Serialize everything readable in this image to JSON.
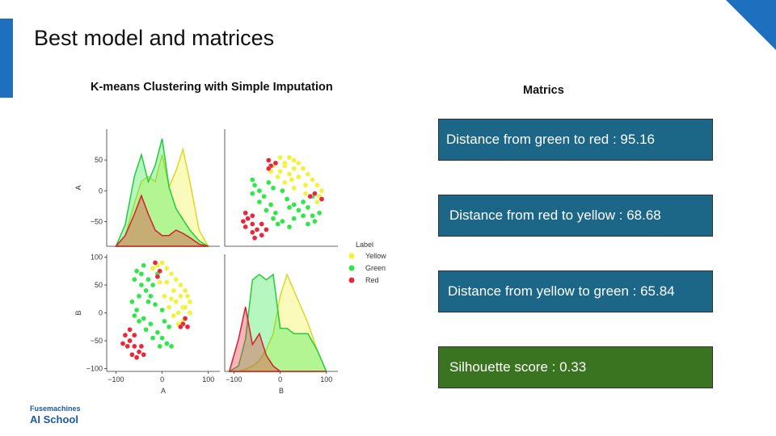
{
  "slide": {
    "title": "Best model and matrices",
    "logo_line1": "Fusemachines",
    "logo_line2": "AI School",
    "accent_color": "#1f6fbf"
  },
  "chart": {
    "title": "K-means Clustering with Simple Imputation"
  },
  "metrics": {
    "title": "Matrics",
    "items": [
      {
        "text": "Distance from green to red : 95.16",
        "color": "#1c6787"
      },
      {
        "text": "Distance from red to yellow : 68.68",
        "color": "#1c6787"
      },
      {
        "text": "Distance from yellow to green : 65.84",
        "color": "#1c6787"
      },
      {
        "text": "Silhouette score : 0.33",
        "color": "#3b7420"
      }
    ]
  },
  "chart_data": {
    "type": "scatter",
    "subtype": "pairplot",
    "variables": [
      "A",
      "B"
    ],
    "xlabel_left": "A",
    "xlabel_right": "B",
    "ylabel_top": "A",
    "ylabel_bottom": "B",
    "A_ticks": [
      -50,
      0,
      50
    ],
    "A_lim": [
      -90,
      100
    ],
    "B_ticks": [
      -100,
      -50,
      0,
      50,
      100
    ],
    "B_lim": [
      -105,
      105
    ],
    "x_ticks_A": [
      -100,
      0,
      100
    ],
    "x_lim_A": [
      -120,
      125
    ],
    "x_ticks_B": [
      -100,
      0,
      100
    ],
    "x_lim_B": [
      -120,
      125
    ],
    "legend": {
      "title": "Label",
      "placement": "right",
      "entries": [
        {
          "name": "Yellow",
          "color": "#f2f23a"
        },
        {
          "name": "Green",
          "color": "#2ee84a"
        },
        {
          "name": "Red",
          "color": "#e8283a"
        }
      ]
    },
    "density_A": {
      "x": [
        -100,
        -80,
        -60,
        -45,
        -30,
        -15,
        0,
        15,
        30,
        45,
        60,
        80,
        100
      ],
      "Yellow": [
        0.0,
        0.1,
        0.4,
        0.6,
        0.65,
        0.6,
        0.85,
        0.55,
        0.7,
        0.9,
        0.6,
        0.15,
        0.0
      ],
      "Green": [
        0.0,
        0.2,
        0.65,
        0.85,
        0.6,
        0.75,
        1.0,
        0.55,
        0.35,
        0.25,
        0.15,
        0.05,
        0.0
      ],
      "Red": [
        0.0,
        0.1,
        0.3,
        0.47,
        0.3,
        0.15,
        0.1,
        0.1,
        0.15,
        0.12,
        0.08,
        0.02,
        0.0
      ]
    },
    "density_B": {
      "x": [
        -110,
        -90,
        -75,
        -60,
        -45,
        -30,
        -15,
        0,
        15,
        30,
        45,
        60,
        80,
        100
      ],
      "Yellow": [
        0.0,
        0.0,
        0.02,
        0.05,
        0.1,
        0.2,
        0.35,
        0.7,
        0.9,
        0.75,
        0.6,
        0.45,
        0.2,
        0.0
      ],
      "Green": [
        0.0,
        0.05,
        0.3,
        0.85,
        0.9,
        0.85,
        0.9,
        0.4,
        0.4,
        0.35,
        0.35,
        0.35,
        0.2,
        0.0
      ],
      "Red": [
        0.0,
        0.3,
        0.6,
        0.25,
        0.35,
        0.15,
        0.05,
        0.0,
        0.0,
        0.0,
        0.0,
        0.0,
        0.0,
        0.0
      ]
    },
    "scatter_clusters": [
      {
        "label": "Yellow",
        "points": [
          [
            -20,
            80
          ],
          [
            -10,
            85
          ],
          [
            0,
            90
          ],
          [
            10,
            80
          ],
          [
            20,
            70
          ],
          [
            30,
            60
          ],
          [
            40,
            50
          ],
          [
            50,
            40
          ],
          [
            55,
            30
          ],
          [
            60,
            20
          ],
          [
            45,
            10
          ],
          [
            35,
            0
          ],
          [
            25,
            -5
          ],
          [
            15,
            10
          ],
          [
            5,
            30
          ],
          [
            -5,
            55
          ],
          [
            10,
            55
          ],
          [
            25,
            40
          ],
          [
            40,
            30
          ],
          [
            50,
            10
          ],
          [
            30,
            20
          ],
          [
            20,
            25
          ],
          [
            60,
            0
          ],
          [
            45,
            -15
          ],
          [
            35,
            -20
          ]
        ]
      },
      {
        "label": "Green",
        "points": [
          [
            -60,
            60
          ],
          [
            -45,
            70
          ],
          [
            -30,
            60
          ],
          [
            -20,
            50
          ],
          [
            -35,
            40
          ],
          [
            -50,
            30
          ],
          [
            -65,
            20
          ],
          [
            -55,
            5
          ],
          [
            -40,
            -10
          ],
          [
            -25,
            -20
          ],
          [
            -10,
            -35
          ],
          [
            0,
            -45
          ],
          [
            10,
            -55
          ],
          [
            20,
            -60
          ],
          [
            -5,
            -60
          ],
          [
            -20,
            -45
          ],
          [
            -35,
            -30
          ],
          [
            -50,
            -15
          ],
          [
            -60,
            -5
          ],
          [
            -30,
            20
          ],
          [
            -15,
            15
          ],
          [
            0,
            5
          ],
          [
            5,
            -15
          ],
          [
            15,
            -25
          ],
          [
            -45,
            50
          ],
          [
            -25,
            30
          ],
          [
            -10,
            70
          ],
          [
            -40,
            85
          ],
          [
            -55,
            75
          ]
        ]
      },
      {
        "label": "Red",
        "points": [
          [
            -80,
            -40
          ],
          [
            -70,
            -50
          ],
          [
            -60,
            -60
          ],
          [
            -50,
            -70
          ],
          [
            -40,
            -75
          ],
          [
            -75,
            -60
          ],
          [
            -65,
            -75
          ],
          [
            -55,
            -80
          ],
          [
            -85,
            -55
          ],
          [
            -70,
            -30
          ],
          [
            -60,
            -40
          ],
          [
            -45,
            -60
          ],
          [
            -15,
            90
          ],
          [
            -5,
            75
          ],
          [
            -10,
            65
          ],
          [
            45,
            -20
          ],
          [
            50,
            -10
          ],
          [
            40,
            -25
          ],
          [
            55,
            -25
          ]
        ]
      }
    ]
  }
}
